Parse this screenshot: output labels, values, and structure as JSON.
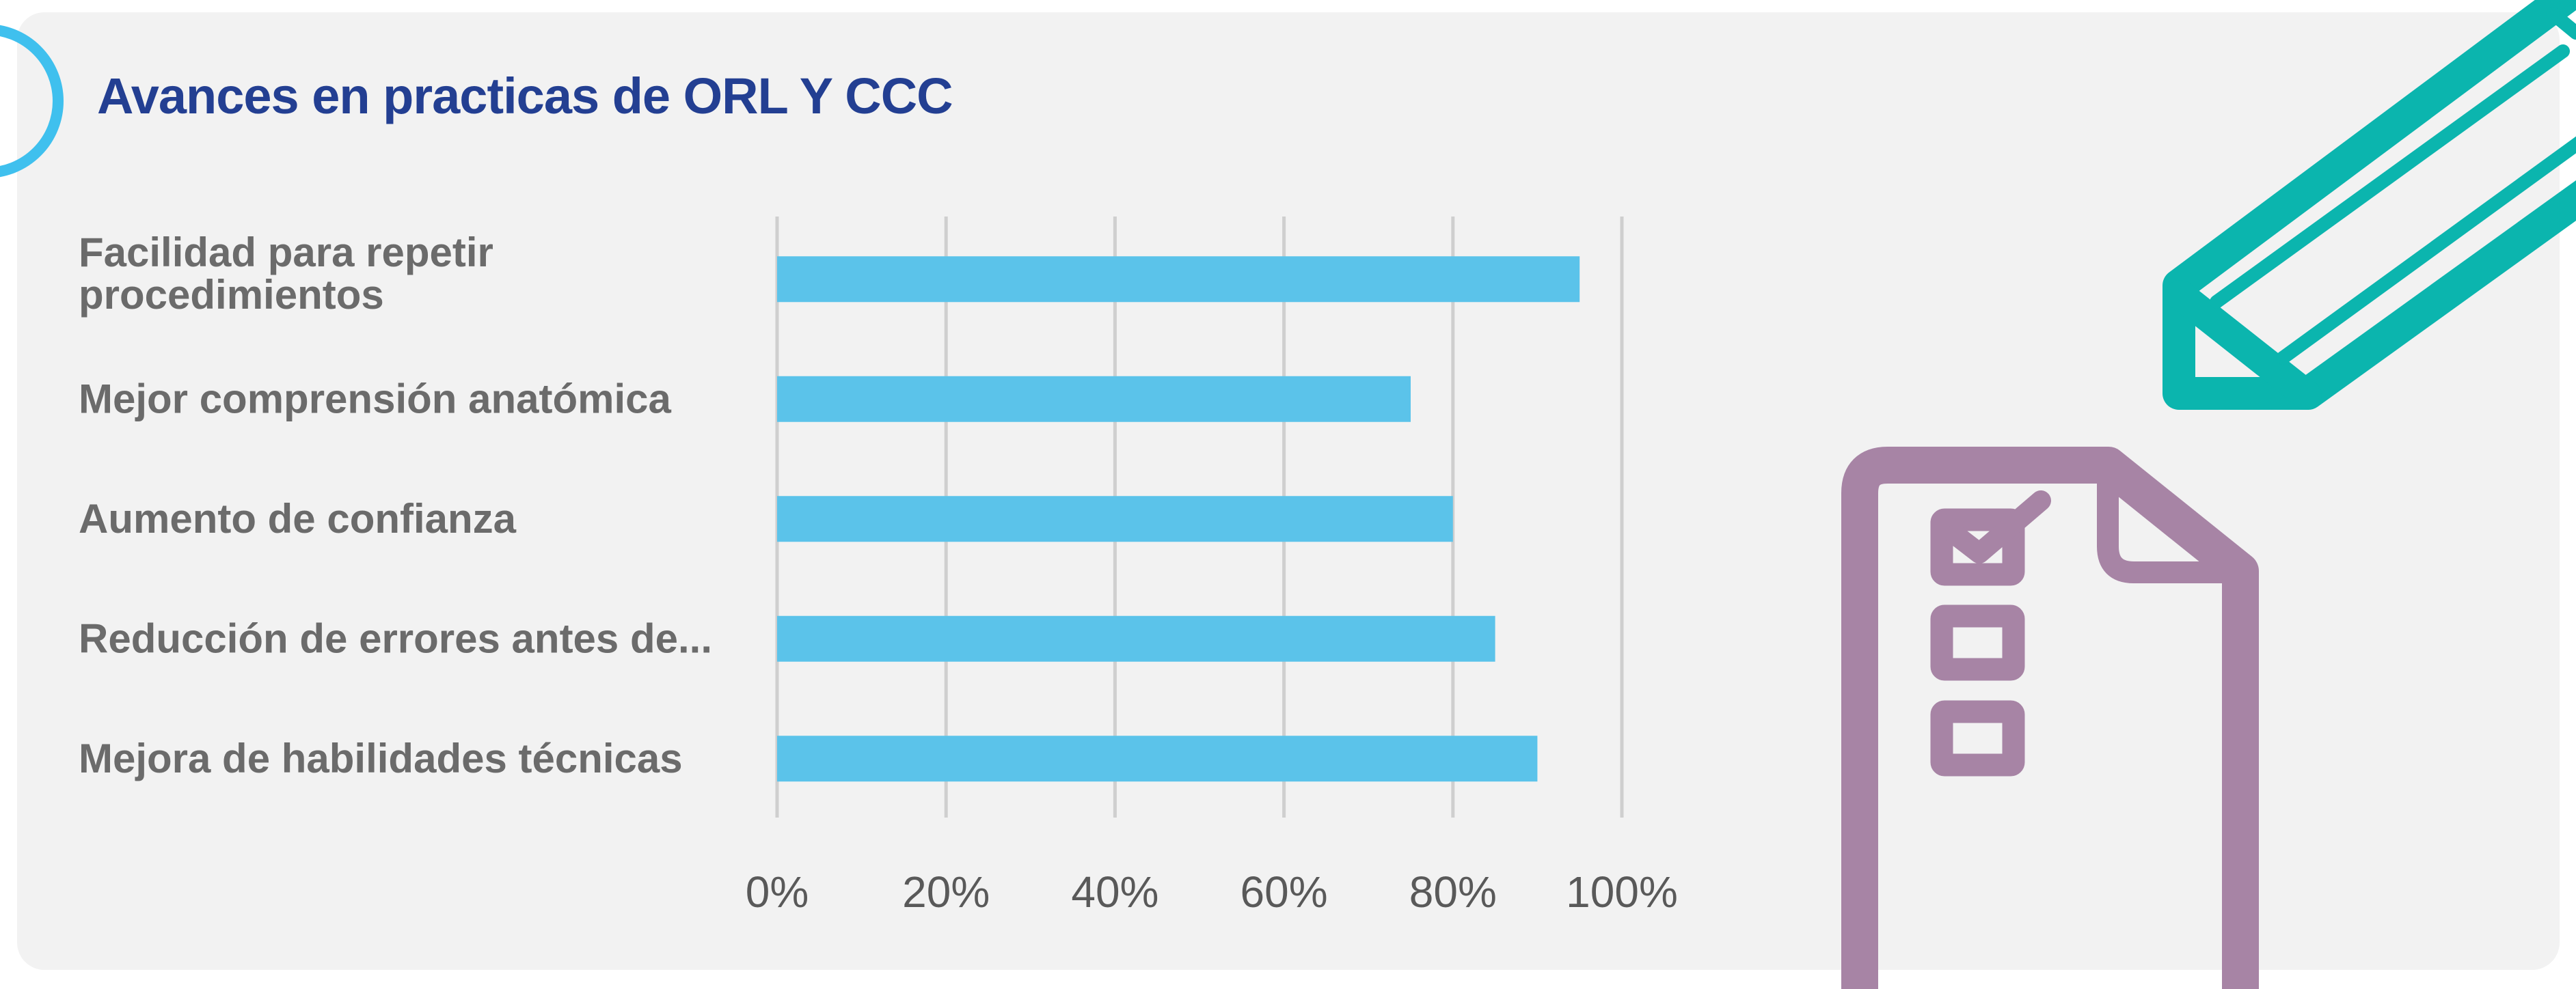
{
  "chart_data": {
    "type": "bar",
    "orientation": "horizontal",
    "title": "Avances en practicas de ORL Y CCC",
    "categories": [
      [
        "Facilidad para repetir",
        "procedimientos"
      ],
      [
        "Mejor comprensión anatómica"
      ],
      [
        "Aumento de confianza"
      ],
      [
        "Reducción de errores antes de..."
      ],
      [
        "Mejora de habilidades técnicas"
      ]
    ],
    "values": [
      95,
      75,
      80,
      85,
      90
    ],
    "xlim": [
      0,
      100
    ],
    "x_ticks": [
      "0%",
      "20%",
      "40%",
      "60%",
      "80%",
      "100%"
    ],
    "grid": "vertical",
    "xlabel": "",
    "ylabel": "",
    "colors": {
      "bar": "#5bc3ea",
      "title": "#233f92",
      "grid": "#cfcfcf",
      "accent_circle": "#3fc0ee",
      "pencil": "#0bb5ae",
      "checklist": "#a784a5"
    }
  },
  "icons": [
    "pencil-icon",
    "checklist-document-icon"
  ]
}
